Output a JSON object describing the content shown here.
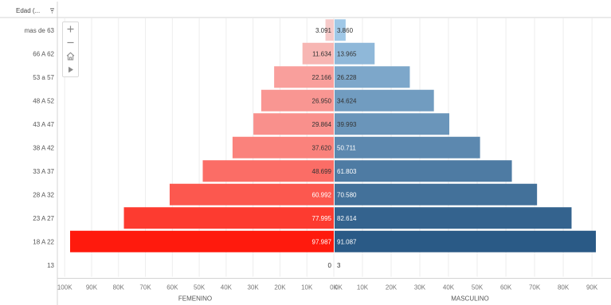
{
  "chart_data": {
    "type": "bar",
    "orientation": "horizontal-diverging",
    "row_header": "Edad (...",
    "sort_icon": "sort-descending-icon",
    "categories": [
      "mas de 63",
      "66 A 62",
      "53 a 57",
      "48 A 52",
      "43 A 47",
      "38 A 42",
      "33 A 37",
      "28 A 32",
      "23 A 27",
      "18 A 22",
      "13"
    ],
    "left": {
      "label": "FEMENINO",
      "values": [
        3091,
        11634,
        22166,
        26950,
        29864,
        37620,
        48699,
        60992,
        77995,
        97987,
        0
      ],
      "data_labels": [
        "3.091",
        "11.634",
        "22.166",
        "26.950",
        "29.864",
        "37.620",
        "48.699",
        "60.992",
        "77.995",
        "97.987",
        "0"
      ],
      "ticks": [
        "100K",
        "90K",
        "80K",
        "70K",
        "60K",
        "50K",
        "40K",
        "30K",
        "20K",
        "10K",
        "0K"
      ],
      "xlim": [
        0,
        100000
      ],
      "color_low": "#f6d4d4",
      "color_high": "#ff1a0d"
    },
    "right": {
      "label": "MASCULINO",
      "values": [
        3860,
        13965,
        26228,
        34624,
        39993,
        50711,
        61803,
        70580,
        82614,
        91087,
        3
      ],
      "data_labels": [
        "3.860",
        "13.965",
        "26.228",
        "34.624",
        "39.993",
        "50.711",
        "61.803",
        "70.580",
        "82.614",
        "91.087",
        "3"
      ],
      "ticks": [
        "0K",
        "10K",
        "20K",
        "30K",
        "40K",
        "50K",
        "60K",
        "70K",
        "80K",
        "90K"
      ],
      "xlim": [
        0,
        90000
      ],
      "color_low": "#a9d0ee",
      "color_high": "#2a5a86"
    },
    "grid": true
  },
  "toolbar": {
    "tools": [
      "plus-icon",
      "minus-icon",
      "home-icon",
      "play-icon"
    ]
  }
}
